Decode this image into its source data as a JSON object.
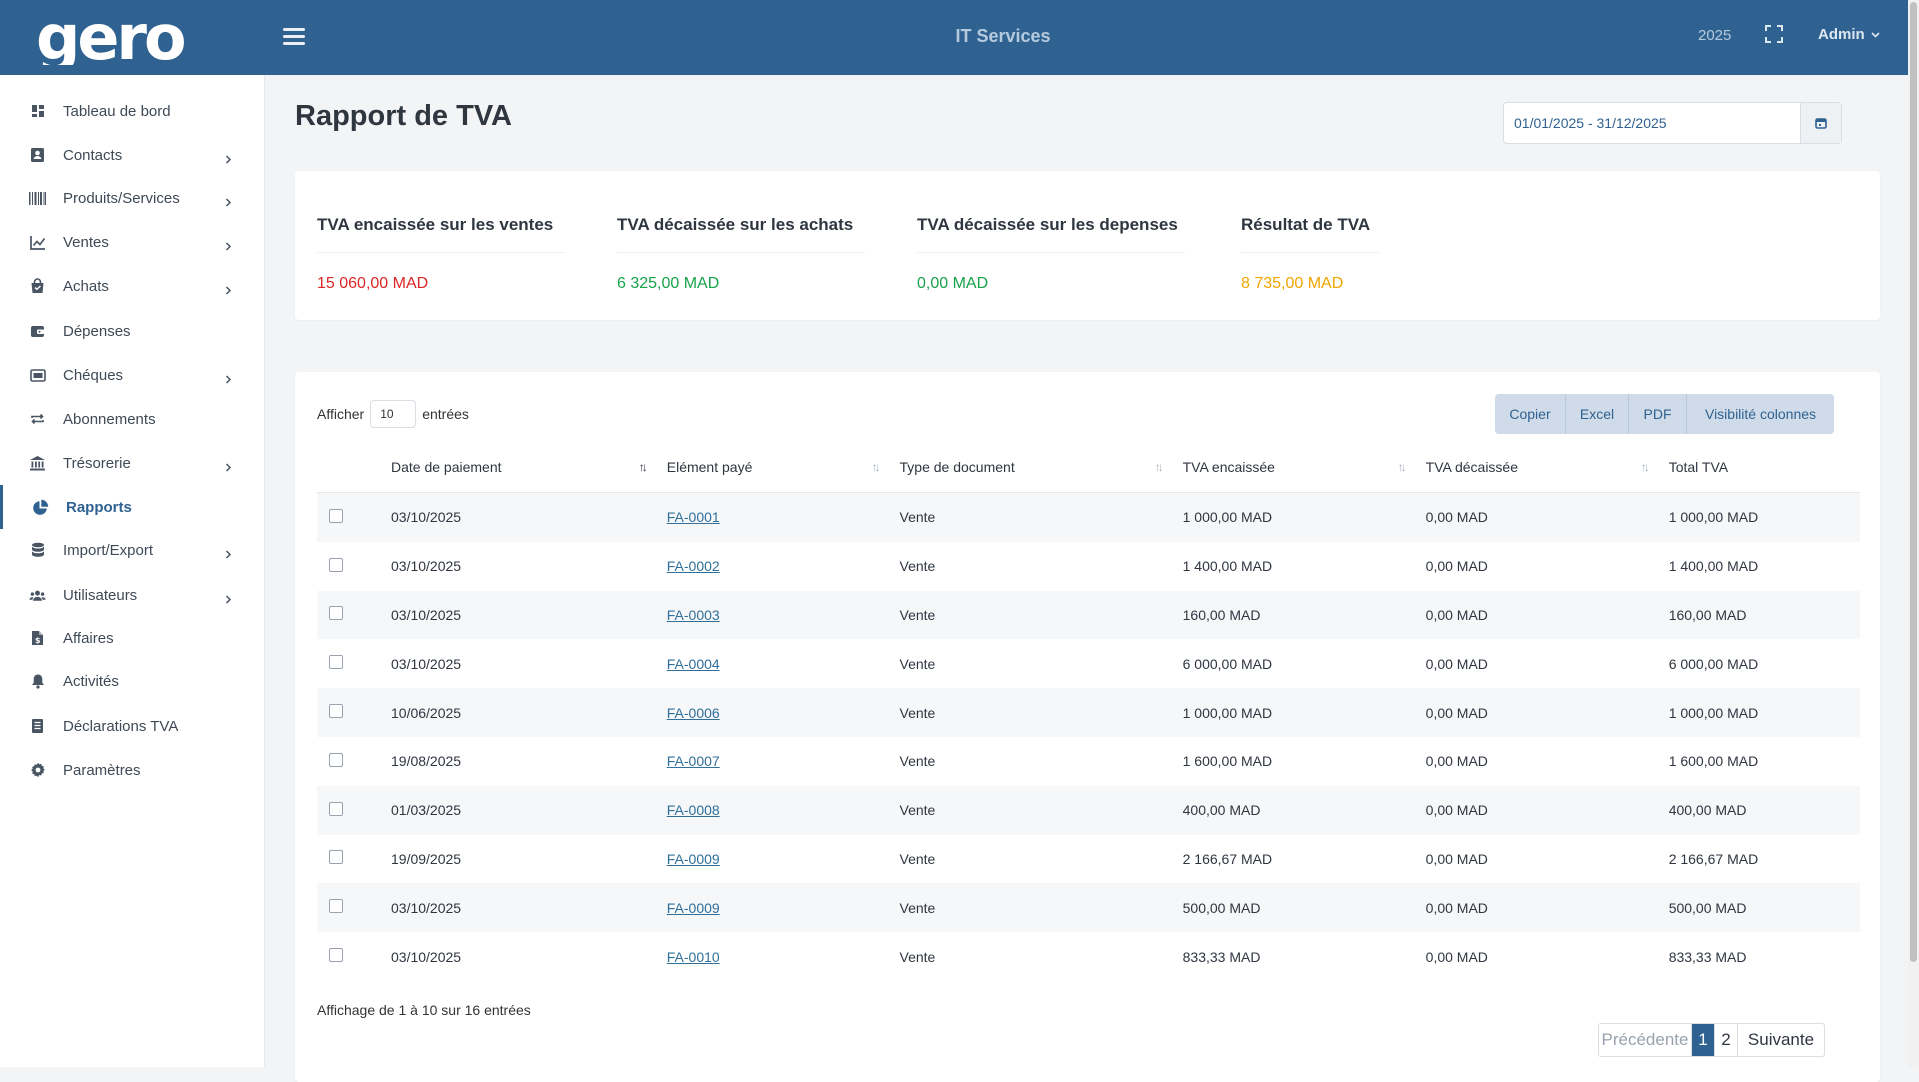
{
  "header": {
    "logo_text": "gero",
    "app_title": "IT Services",
    "year": "2025",
    "user": "Admin",
    "brand_color": "#2f6291"
  },
  "sidebar": {
    "items": [
      {
        "label": "Tableau de bord",
        "icon": "dashboard-icon",
        "chevron": false,
        "active": false
      },
      {
        "label": "Contacts",
        "icon": "contacts-icon",
        "chevron": true,
        "active": false
      },
      {
        "label": "Produits/Services",
        "icon": "barcode-icon",
        "chevron": true,
        "active": false
      },
      {
        "label": "Ventes",
        "icon": "chart-line-icon",
        "chevron": true,
        "active": false
      },
      {
        "label": "Achats",
        "icon": "shopping-bag-icon",
        "chevron": true,
        "active": false
      },
      {
        "label": "Dépenses",
        "icon": "wallet-icon",
        "chevron": false,
        "active": false
      },
      {
        "label": "Chéques",
        "icon": "cheque-icon",
        "chevron": true,
        "active": false
      },
      {
        "label": "Abonnements",
        "icon": "repeat-icon",
        "chevron": false,
        "active": false
      },
      {
        "label": "Trésorerie",
        "icon": "bank-icon",
        "chevron": true,
        "active": false
      },
      {
        "label": "Rapports",
        "icon": "pie-chart-icon",
        "chevron": false,
        "active": true
      },
      {
        "label": "Import/Export",
        "icon": "database-icon",
        "chevron": true,
        "active": false
      },
      {
        "label": "Utilisateurs",
        "icon": "users-icon",
        "chevron": true,
        "active": false
      },
      {
        "label": "Affaires",
        "icon": "file-dollar-icon",
        "chevron": false,
        "active": false
      },
      {
        "label": "Activités",
        "icon": "bell-icon",
        "chevron": false,
        "active": false
      },
      {
        "label": "Déclarations TVA",
        "icon": "document-list-icon",
        "chevron": false,
        "active": false
      },
      {
        "label": "Paramètres",
        "icon": "gear-icon",
        "chevron": false,
        "active": false
      }
    ]
  },
  "main": {
    "title": "Rapport de TVA",
    "date_range": "01/01/2025 - 31/12/2025"
  },
  "summary": [
    {
      "label": "TVA encaissée sur les ventes",
      "value": "15 060,00 MAD",
      "color": "#dc2626"
    },
    {
      "label": "TVA décaissée sur les achats",
      "value": "6 325,00 MAD",
      "color": "#16a34a"
    },
    {
      "label": "TVA décaissée sur les depenses",
      "value": "0,00 MAD",
      "color": "#16a34a"
    },
    {
      "label": "Résultat de TVA",
      "value": "8 735,00 MAD",
      "color": "#f0a500"
    }
  ],
  "table": {
    "show_prefix": "Afficher",
    "show_value": "10",
    "show_suffix": "entrées",
    "buttons": [
      "Copier",
      "Excel",
      "PDF",
      "Visibilité colonnes"
    ],
    "columns": [
      "Date de paiement",
      "Elément payé",
      "Type de document",
      "TVA encaissée",
      "TVA décaissée",
      "Total TVA"
    ],
    "rows": [
      {
        "date": "03/10/2025",
        "element": "FA-0001",
        "type": "Vente",
        "encaissee": "1 000,00 MAD",
        "decaissee": "0,00 MAD",
        "total": "1 000,00 MAD"
      },
      {
        "date": "03/10/2025",
        "element": "FA-0002",
        "type": "Vente",
        "encaissee": "1 400,00 MAD",
        "decaissee": "0,00 MAD",
        "total": "1 400,00 MAD"
      },
      {
        "date": "03/10/2025",
        "element": "FA-0003",
        "type": "Vente",
        "encaissee": "160,00 MAD",
        "decaissee": "0,00 MAD",
        "total": "160,00 MAD"
      },
      {
        "date": "03/10/2025",
        "element": "FA-0004",
        "type": "Vente",
        "encaissee": "6 000,00 MAD",
        "decaissee": "0,00 MAD",
        "total": "6 000,00 MAD"
      },
      {
        "date": "10/06/2025",
        "element": "FA-0006",
        "type": "Vente",
        "encaissee": "1 000,00 MAD",
        "decaissee": "0,00 MAD",
        "total": "1 000,00 MAD"
      },
      {
        "date": "19/08/2025",
        "element": "FA-0007",
        "type": "Vente",
        "encaissee": "1 600,00 MAD",
        "decaissee": "0,00 MAD",
        "total": "1 600,00 MAD"
      },
      {
        "date": "01/03/2025",
        "element": "FA-0008",
        "type": "Vente",
        "encaissee": "400,00 MAD",
        "decaissee": "0,00 MAD",
        "total": "400,00 MAD"
      },
      {
        "date": "19/09/2025",
        "element": "FA-0009",
        "type": "Vente",
        "encaissee": "2 166,67 MAD",
        "decaissee": "0,00 MAD",
        "total": "2 166,67 MAD"
      },
      {
        "date": "03/10/2025",
        "element": "FA-0009",
        "type": "Vente",
        "encaissee": "500,00 MAD",
        "decaissee": "0,00 MAD",
        "total": "500,00 MAD"
      },
      {
        "date": "03/10/2025",
        "element": "FA-0010",
        "type": "Vente",
        "encaissee": "833,33 MAD",
        "decaissee": "0,00 MAD",
        "total": "833,33 MAD"
      }
    ],
    "info": "Affichage de 1 à 10 sur 16 entrées",
    "pagination": {
      "prev": "Précédente",
      "pages": [
        "1",
        "2"
      ],
      "current": "1",
      "next": "Suivante"
    }
  }
}
